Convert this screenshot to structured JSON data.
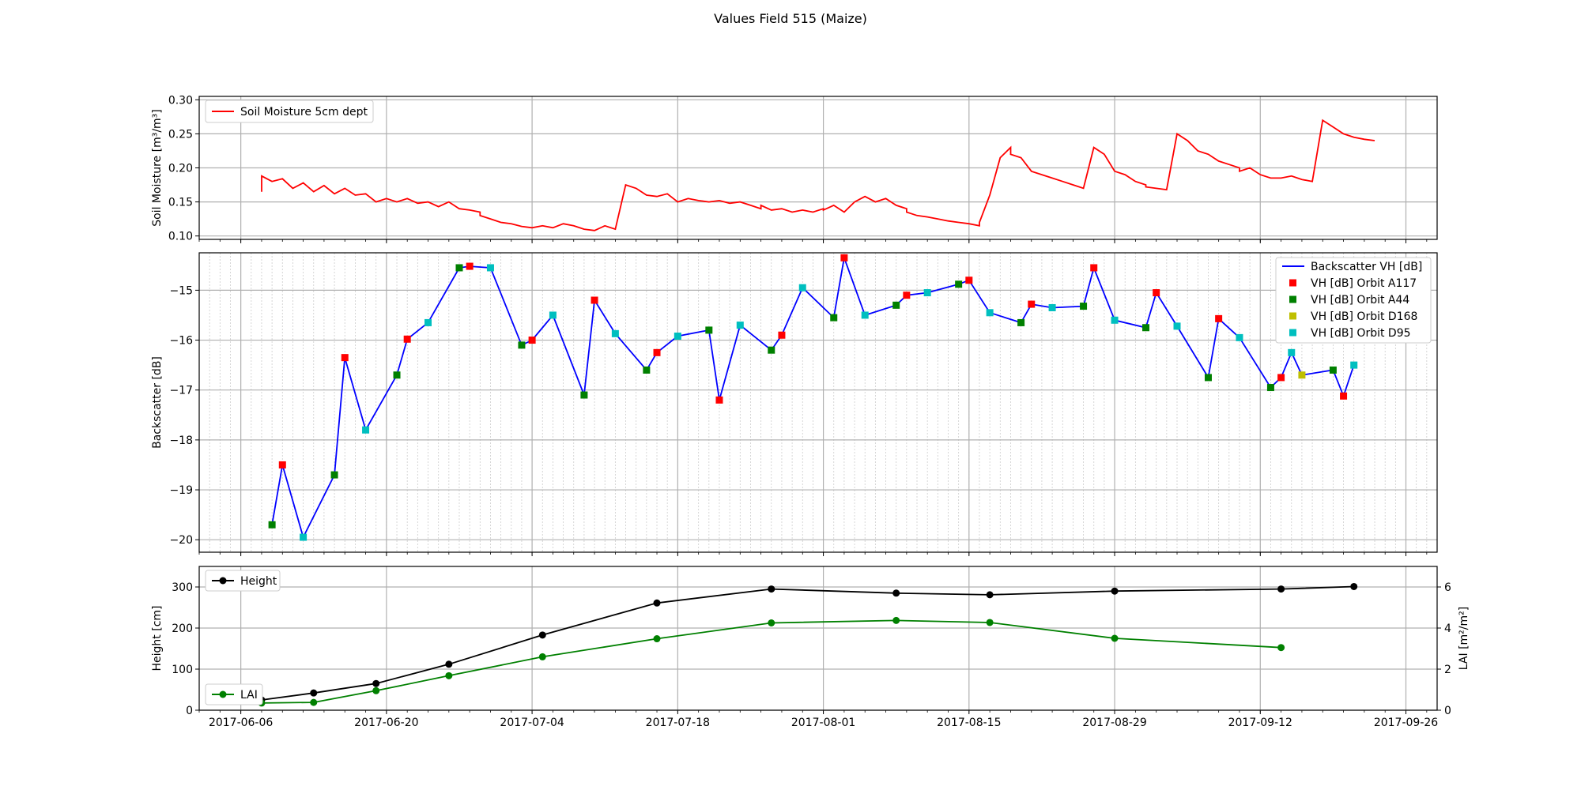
{
  "figure": {
    "title": "Values Field 515 (Maize)"
  },
  "chart_data": [
    {
      "type": "line",
      "ylabel": "Soil Moisture [m³/m³]",
      "ylim": [
        0.095,
        0.305
      ],
      "yticks": [
        0.1,
        0.15,
        0.2,
        0.25,
        0.3
      ],
      "xlim": [
        "2017-06-02",
        "2017-09-29"
      ],
      "xticks": [
        "2017-06-06",
        "2017-06-20",
        "2017-07-04",
        "2017-07-18",
        "2017-08-01",
        "2017-08-15",
        "2017-08-29",
        "2017-09-12",
        "2017-09-26"
      ],
      "grid": true,
      "legend_position": "upper left",
      "series": [
        {
          "name": "Soil Moisture 5cm dept",
          "color": "#ff0000",
          "x": [
            "2017-06-08",
            "2017-06-08",
            "2017-06-09",
            "2017-06-10",
            "2017-06-11",
            "2017-06-12",
            "2017-06-13",
            "2017-06-14",
            "2017-06-15",
            "2017-06-16",
            "2017-06-17",
            "2017-06-18",
            "2017-06-19",
            "2017-06-20",
            "2017-06-21",
            "2017-06-22",
            "2017-06-23",
            "2017-06-24",
            "2017-06-25",
            "2017-06-26",
            "2017-06-27",
            "2017-06-28",
            "2017-06-29",
            "2017-06-29",
            "2017-06-30",
            "2017-07-01",
            "2017-07-02",
            "2017-07-03",
            "2017-07-04",
            "2017-07-05",
            "2017-07-06",
            "2017-07-07",
            "2017-07-08",
            "2017-07-09",
            "2017-07-10",
            "2017-07-11",
            "2017-07-12",
            "2017-07-13",
            "2017-07-14",
            "2017-07-15",
            "2017-07-16",
            "2017-07-17",
            "2017-07-18",
            "2017-07-19",
            "2017-07-20",
            "2017-07-21",
            "2017-07-22",
            "2017-07-23",
            "2017-07-24",
            "2017-07-25",
            "2017-07-26",
            "2017-07-26",
            "2017-07-27",
            "2017-07-28",
            "2017-07-29",
            "2017-07-30",
            "2017-07-31",
            "2017-08-01",
            "2017-08-01",
            "2017-08-02",
            "2017-08-03",
            "2017-08-04",
            "2017-08-05",
            "2017-08-06",
            "2017-08-07",
            "2017-08-08",
            "2017-08-09",
            "2017-08-09",
            "2017-08-10",
            "2017-08-11",
            "2017-08-12",
            "2017-08-13",
            "2017-08-14",
            "2017-08-15",
            "2017-08-16",
            "2017-08-16",
            "2017-08-17",
            "2017-08-18",
            "2017-08-19",
            "2017-08-19",
            "2017-08-20",
            "2017-08-21",
            "2017-08-22",
            "2017-08-23",
            "2017-08-24",
            "2017-08-25",
            "2017-08-26",
            "2017-08-27",
            "2017-08-28",
            "2017-08-29",
            "2017-08-30",
            "2017-08-31",
            "2017-09-01",
            "2017-09-01",
            "2017-09-02",
            "2017-09-03",
            "2017-09-04",
            "2017-09-05",
            "2017-09-06",
            "2017-09-07",
            "2017-09-08",
            "2017-09-09",
            "2017-09-10",
            "2017-09-10",
            "2017-09-11",
            "2017-09-12",
            "2017-09-13",
            "2017-09-14",
            "2017-09-15",
            "2017-09-16",
            "2017-09-17",
            "2017-09-18",
            "2017-09-19",
            "2017-09-20",
            "2017-09-21",
            "2017-09-22",
            "2017-09-23"
          ],
          "y": [
            0.165,
            0.188,
            0.18,
            0.184,
            0.17,
            0.178,
            0.165,
            0.174,
            0.162,
            0.17,
            0.16,
            0.162,
            0.15,
            0.155,
            0.15,
            0.155,
            0.148,
            0.15,
            0.143,
            0.15,
            0.14,
            0.138,
            0.135,
            0.13,
            0.125,
            0.12,
            0.118,
            0.114,
            0.112,
            0.115,
            0.112,
            0.118,
            0.115,
            0.11,
            0.108,
            0.115,
            0.11,
            0.175,
            0.17,
            0.16,
            0.158,
            0.162,
            0.15,
            0.155,
            0.152,
            0.15,
            0.152,
            0.148,
            0.15,
            0.145,
            0.14,
            0.145,
            0.138,
            0.14,
            0.135,
            0.138,
            0.135,
            0.14,
            0.138,
            0.145,
            0.135,
            0.15,
            0.158,
            0.15,
            0.155,
            0.145,
            0.14,
            0.135,
            0.13,
            0.128,
            0.125,
            0.122,
            0.12,
            0.118,
            0.115,
            0.12,
            0.16,
            0.215,
            0.23,
            0.22,
            0.215,
            0.195,
            0.19,
            0.185,
            0.18,
            0.175,
            0.17,
            0.23,
            0.22,
            0.195,
            0.19,
            0.18,
            0.175,
            0.172,
            0.17,
            0.168,
            0.25,
            0.24,
            0.225,
            0.22,
            0.21,
            0.205,
            0.2,
            0.195,
            0.2,
            0.19,
            0.185,
            0.185,
            0.188,
            0.183,
            0.18,
            0.27,
            0.26,
            0.25,
            0.245,
            0.242,
            0.24
          ],
          "note": ""
        }
      ]
    },
    {
      "type": "line",
      "ylabel": "Backscatter [dB]",
      "ylim": [
        -20.25,
        -14.25
      ],
      "yticks": [
        -20,
        -19,
        -18,
        -17,
        -16,
        -15
      ],
      "grid": true,
      "legend_position": "upper right",
      "series": [
        {
          "name": "Backscatter VH [dB]",
          "color": "#0000ff",
          "x": [
            "2017-06-09",
            "2017-06-10",
            "2017-06-12",
            "2017-06-15",
            "2017-06-16",
            "2017-06-18",
            "2017-06-21",
            "2017-06-22",
            "2017-06-24",
            "2017-06-27",
            "2017-06-28",
            "2017-06-30",
            "2017-07-03",
            "2017-07-04",
            "2017-07-06",
            "2017-07-09",
            "2017-07-10",
            "2017-07-12",
            "2017-07-15",
            "2017-07-16",
            "2017-07-18",
            "2017-07-21",
            "2017-07-22",
            "2017-07-24",
            "2017-07-27",
            "2017-07-28",
            "2017-07-30",
            "2017-08-02",
            "2017-08-03",
            "2017-08-05",
            "2017-08-08",
            "2017-08-09",
            "2017-08-11",
            "2017-08-14",
            "2017-08-15",
            "2017-08-17",
            "2017-08-20",
            "2017-08-21",
            "2017-08-23",
            "2017-08-26",
            "2017-08-27",
            "2017-08-29",
            "2017-09-01",
            "2017-09-02",
            "2017-09-04",
            "2017-09-07",
            "2017-09-08",
            "2017-09-10",
            "2017-09-13",
            "2017-09-14",
            "2017-09-15",
            "2017-09-16",
            "2017-09-19",
            "2017-09-20",
            "2017-09-21"
          ],
          "y": [
            -19.7,
            -18.5,
            -19.95,
            -18.7,
            -16.35,
            -17.8,
            -16.7,
            -15.98,
            -15.65,
            -14.55,
            -14.52,
            -14.55,
            -16.1,
            -16.0,
            -15.5,
            -17.1,
            -15.2,
            -15.87,
            -16.6,
            -16.25,
            -15.92,
            -15.8,
            -17.2,
            -15.7,
            -16.2,
            -15.9,
            -14.95,
            -15.55,
            -14.35,
            -15.5,
            -15.3,
            -15.1,
            -15.05,
            -14.88,
            -14.8,
            -15.45,
            -15.65,
            -15.28,
            -15.35,
            -15.32,
            -14.55,
            -15.6,
            -15.75,
            -15.05,
            -15.72,
            -16.75,
            -15.57,
            -15.95,
            -16.95,
            -16.75,
            -16.25,
            -16.7,
            -16.6,
            -17.12,
            -16.5
          ]
        },
        {
          "name": "VH [dB] Orbit A117",
          "color": "#ff0000",
          "marker": "square",
          "x": [
            "2017-06-10",
            "2017-06-16",
            "2017-06-22",
            "2017-06-28",
            "2017-07-04",
            "2017-07-10",
            "2017-07-16",
            "2017-07-22",
            "2017-07-28",
            "2017-08-03",
            "2017-08-09",
            "2017-08-15",
            "2017-08-21",
            "2017-08-27",
            "2017-09-02",
            "2017-09-08",
            "2017-09-14",
            "2017-09-20"
          ],
          "y": [
            -18.5,
            -16.35,
            -15.98,
            -14.52,
            -16.0,
            -15.2,
            -16.25,
            -17.2,
            -15.9,
            -14.35,
            -15.1,
            -14.8,
            -15.28,
            -14.55,
            -15.05,
            -15.57,
            -16.75,
            -17.12
          ]
        },
        {
          "name": "VH [dB] Orbit A44",
          "color": "#008000",
          "marker": "square",
          "x": [
            "2017-06-09",
            "2017-06-15",
            "2017-06-21",
            "2017-06-27",
            "2017-07-03",
            "2017-07-09",
            "2017-07-15",
            "2017-07-21",
            "2017-07-27",
            "2017-08-02",
            "2017-08-08",
            "2017-08-14",
            "2017-08-20",
            "2017-08-26",
            "2017-09-01",
            "2017-09-07",
            "2017-09-13",
            "2017-09-19"
          ],
          "y": [
            -19.7,
            -18.7,
            -16.7,
            -14.55,
            -16.1,
            -17.1,
            -16.6,
            -15.8,
            -16.2,
            -15.55,
            -15.3,
            -14.88,
            -15.65,
            -15.32,
            -15.75,
            -16.75,
            -16.95,
            -16.6
          ]
        },
        {
          "name": "VH [dB] Orbit D168",
          "color": "#bfbf00",
          "marker": "square",
          "x": [
            "2017-09-16"
          ],
          "y": [
            -16.7
          ]
        },
        {
          "name": "VH [dB] Orbit D95",
          "color": "#00bfbf",
          "marker": "square",
          "x": [
            "2017-06-12",
            "2017-06-18",
            "2017-06-24",
            "2017-06-30",
            "2017-07-06",
            "2017-07-12",
            "2017-07-18",
            "2017-07-24",
            "2017-07-30",
            "2017-08-05",
            "2017-08-11",
            "2017-08-17",
            "2017-08-23",
            "2017-08-29",
            "2017-09-04",
            "2017-09-10",
            "2017-09-15",
            "2017-09-21"
          ],
          "y": [
            -19.95,
            -17.8,
            -15.65,
            -14.55,
            -15.5,
            -15.87,
            -15.92,
            -15.7,
            -14.95,
            -15.5,
            -15.05,
            -15.45,
            -15.35,
            -15.6,
            -15.72,
            -15.95,
            -16.25,
            -16.5
          ]
        }
      ]
    },
    {
      "type": "line",
      "ylabel": "Height [cm]",
      "ylabel_right": "LAI [m²/m²]",
      "ylim": [
        0,
        350
      ],
      "yticks": [
        0,
        100,
        200,
        300
      ],
      "ylim_right": [
        0,
        7
      ],
      "yticks_right": [
        0,
        2,
        4,
        6
      ],
      "grid": true,
      "series": [
        {
          "name": "Height",
          "color": "#000000",
          "marker": "circle",
          "axis": "left",
          "legend_position": "upper left",
          "x": [
            "2017-06-08",
            "2017-06-13",
            "2017-06-19",
            "2017-06-26",
            "2017-07-05",
            "2017-07-16",
            "2017-07-27",
            "2017-08-08",
            "2017-08-17",
            "2017-08-29",
            "2017-09-14",
            "2017-09-21"
          ],
          "y": [
            25,
            42,
            65,
            112,
            183,
            261,
            295,
            285,
            281,
            290,
            295,
            301
          ]
        },
        {
          "name": "LAI",
          "color": "#008000",
          "marker": "circle",
          "axis": "right",
          "legend_position": "lower left",
          "x": [
            "2017-06-08",
            "2017-06-13",
            "2017-06-19",
            "2017-06-26",
            "2017-07-05",
            "2017-07-16",
            "2017-07-27",
            "2017-08-08",
            "2017-08-17",
            "2017-08-29",
            "2017-09-14"
          ],
          "y": [
            0.35,
            0.38,
            0.95,
            1.68,
            2.6,
            3.48,
            4.25,
            4.37,
            4.27,
            3.5,
            3.05
          ]
        }
      ]
    }
  ]
}
